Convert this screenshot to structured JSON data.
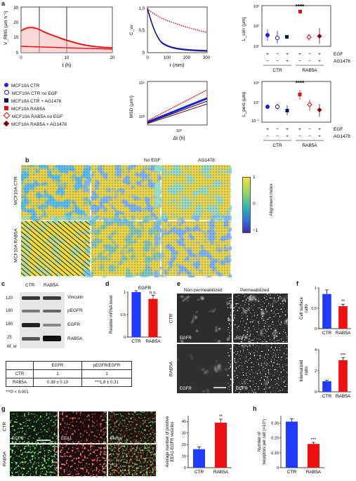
{
  "panels": {
    "a": "a",
    "b": "b",
    "c": "c",
    "d": "d",
    "e": "e",
    "f": "f",
    "g": "g",
    "h": "h"
  },
  "legend": [
    {
      "label": "MCF10A CTR",
      "color": "#1f1fdd",
      "marker": "circle-filled"
    },
    {
      "label": "MCF10A CTR no EGF",
      "color": "#1f1fdd",
      "marker": "circle-open"
    },
    {
      "label": "MCF10A CTR + AG1478",
      "color": "#101060",
      "marker": "square-filled"
    },
    {
      "label": "MCF10A RAB5A",
      "color": "#e01010",
      "marker": "square-filled"
    },
    {
      "label": "MCF10A RAB5A no EGF",
      "color": "#e01010",
      "marker": "diamond-open"
    },
    {
      "label": "MCF10A RAB5A + AG1478",
      "color": "#7a0a0a",
      "marker": "diamond-filled"
    }
  ],
  "panel_a": {
    "vrms": {
      "ylabel": "V_RMS (µm h⁻¹)",
      "xlabel": "t (h)",
      "xticks": [
        "0",
        "10",
        "20"
      ],
      "yticks": [
        "0",
        "10",
        "20",
        "30"
      ]
    },
    "cvv": {
      "ylabel": "C_vv",
      "xlabel": "r (mm)",
      "xticks": [
        "0",
        "100",
        "200",
        "300"
      ],
      "yticks": [
        "0",
        "0.5",
        "1.0"
      ]
    },
    "lcorr": {
      "ylabel": "L_corr (µm)",
      "yticks": [
        "10¹",
        "10²",
        "10³"
      ],
      "stars": "****"
    },
    "msd": {
      "ylabel": "MSD (µm²)",
      "xlabel": "Δt (h)",
      "yticks": [
        "10⁰",
        "10⁵"
      ],
      "xticks": [
        "10⁰"
      ]
    },
    "lpers": {
      "ylabel": "L_pers (µm)",
      "yticks": [
        "10⁻¹",
        "10¹",
        "10³"
      ],
      "stars": "****"
    },
    "conditions": {
      "egf_label": "EGF",
      "ag_label": "AG1478",
      "egf_signs": [
        "+",
        "−",
        "+",
        "+",
        "−",
        "+"
      ],
      "ag_signs": [
        "−",
        "−",
        "+",
        "−",
        "−",
        "+"
      ],
      "group1": "CTR",
      "group2": "RAB5A"
    }
  },
  "panel_b": {
    "col_headers": [
      "",
      "No EGF",
      "AG1478"
    ],
    "row_labels": [
      "MCF10A CTR",
      "MCF10A RAB5A"
    ],
    "colorbar_label": "Alignment index",
    "colorbar_ticks": [
      "1",
      "0",
      "−1"
    ]
  },
  "panel_c": {
    "col_headers": [
      "CTR",
      "RAB5A"
    ],
    "bands": [
      {
        "mw": "120",
        "name": "Vinculin"
      },
      {
        "mw": "180",
        "name": "pEGFR"
      },
      {
        "mw": "180",
        "name": "EGFR"
      },
      {
        "mw": "25",
        "name": "RAB5A"
      }
    ],
    "mw_label": "M_w",
    "table": {
      "headers": [
        "",
        "EGFR",
        "pEGFR/EGFR"
      ],
      "rows": [
        [
          "CTR",
          "1",
          "1"
        ],
        [
          "RAB5A",
          "0.39 ± 0.19",
          "***1.8 ± 0.31"
        ]
      ]
    },
    "footnote": "***P < 0.001"
  },
  "chart_data": [
    {
      "type": "bar",
      "panel": "d",
      "title": "EGFR",
      "ylabel": "Relative mRNA level",
      "categories": [
        "CTR",
        "RAB5A"
      ],
      "values": [
        1.0,
        0.85
      ],
      "errors": [
        0.03,
        0.08
      ],
      "colors": [
        "#1f3bff",
        "#ee1111"
      ],
      "annotations": [
        "",
        "n.s."
      ],
      "ylim": [
        0,
        1
      ],
      "yticks": [
        "0",
        "0.5",
        "1"
      ]
    },
    {
      "type": "bar",
      "panel": "f-top",
      "ylabel": "Cell surface ratio",
      "categories": [
        "CTR",
        "RAB5A"
      ],
      "values": [
        0.85,
        0.55
      ],
      "errors": [
        0.1,
        0.05
      ],
      "colors": [
        "#1f3bff",
        "#ee1111"
      ],
      "annotations": [
        "",
        "**"
      ],
      "ylim": [
        0,
        1
      ],
      "yticks": [
        "0",
        "0.5",
        "1"
      ]
    },
    {
      "type": "bar",
      "panel": "f-bottom",
      "ylabel": "Internalized ratio",
      "categories": [
        "CTR",
        "RAB5A"
      ],
      "values": [
        1.0,
        3.0
      ],
      "errors": [
        0.1,
        0.25
      ],
      "colors": [
        "#1f3bff",
        "#ee1111"
      ],
      "annotations": [
        "",
        "***"
      ],
      "ylim": [
        0,
        4
      ],
      "yticks": [
        "0",
        "2",
        "4"
      ]
    },
    {
      "type": "bar",
      "panel": "g",
      "ylabel": "Average number of positive EEA1-EGFR vesicles",
      "categories": [
        "CTR",
        "RAB5A"
      ],
      "values": [
        16,
        39
      ],
      "errors": [
        2,
        3
      ],
      "colors": [
        "#1f3bff",
        "#ee1111"
      ],
      "annotations": [
        "",
        "**"
      ],
      "ylim": [
        0,
        45
      ],
      "yticks": [
        "0",
        "10",
        "20",
        "30",
        "40"
      ]
    },
    {
      "type": "bar",
      "panel": "h",
      "ylabel": "Number of receptors per cell (×10⁶)",
      "categories": [
        "CTR",
        "RAB5A"
      ],
      "values": [
        0.31,
        0.16
      ],
      "errors": [
        0.02,
        0.01
      ],
      "colors": [
        "#1f3bff",
        "#ee1111"
      ],
      "annotations": [
        "",
        "***"
      ],
      "ylim": [
        0,
        0.35
      ],
      "yticks": [
        "0",
        "0.10",
        "0.20",
        "0.30"
      ]
    }
  ],
  "panel_e": {
    "col_headers": [
      "Non-permeabilized",
      "Permeabilized"
    ],
    "row_labels": [
      "CTR",
      "RAB5A"
    ],
    "tile_label": "EGFR"
  },
  "panel_g": {
    "col_headers": [
      "EGFR",
      "EEA1",
      "Merge"
    ],
    "row_labels": [
      "CTR",
      "RAB5A"
    ]
  },
  "colors": {
    "blue": "#1f3bff",
    "red": "#ee1111"
  }
}
